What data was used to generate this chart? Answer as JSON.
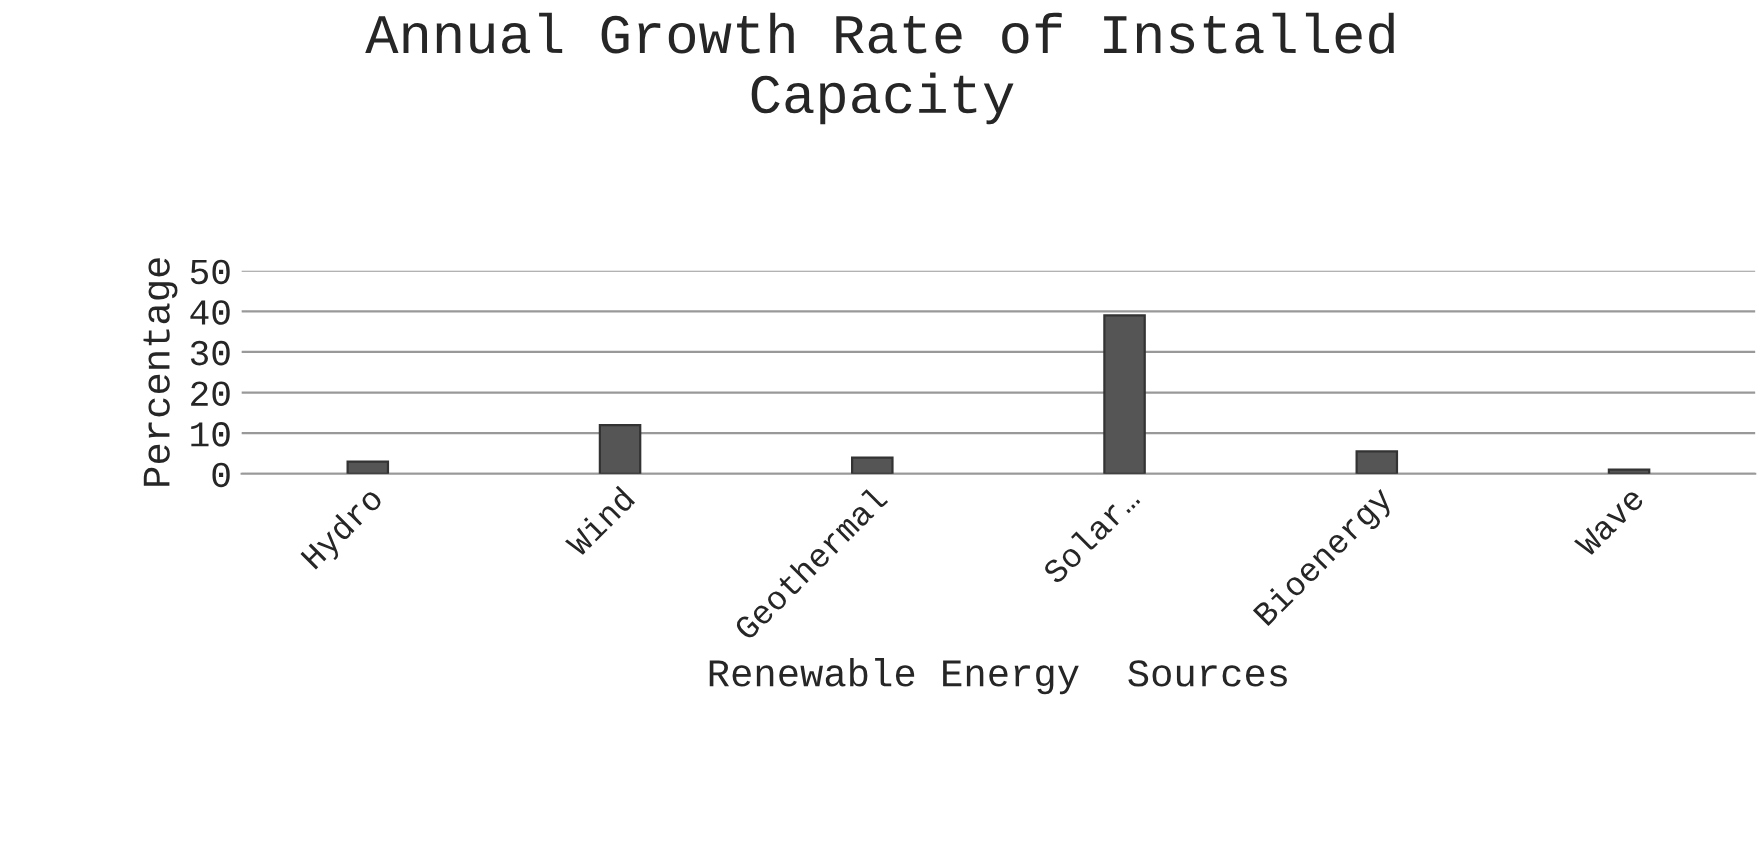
{
  "chart_data": {
    "type": "bar",
    "title": "Annual Growth Rate of Installed\nCapacity",
    "xlabel": "Renewable Energy  Sources",
    "ylabel": "Percentage",
    "categories": [
      "Hydro",
      "Wind",
      "Geothermal",
      "Solar…",
      "Bioenergy",
      "Wave"
    ],
    "values": [
      3,
      12,
      4,
      39,
      5.5,
      1
    ],
    "color": "#555555",
    "ylim": [
      0,
      50
    ],
    "yticks": [
      0,
      10,
      20,
      30,
      40,
      50
    ],
    "grid": "y"
  }
}
